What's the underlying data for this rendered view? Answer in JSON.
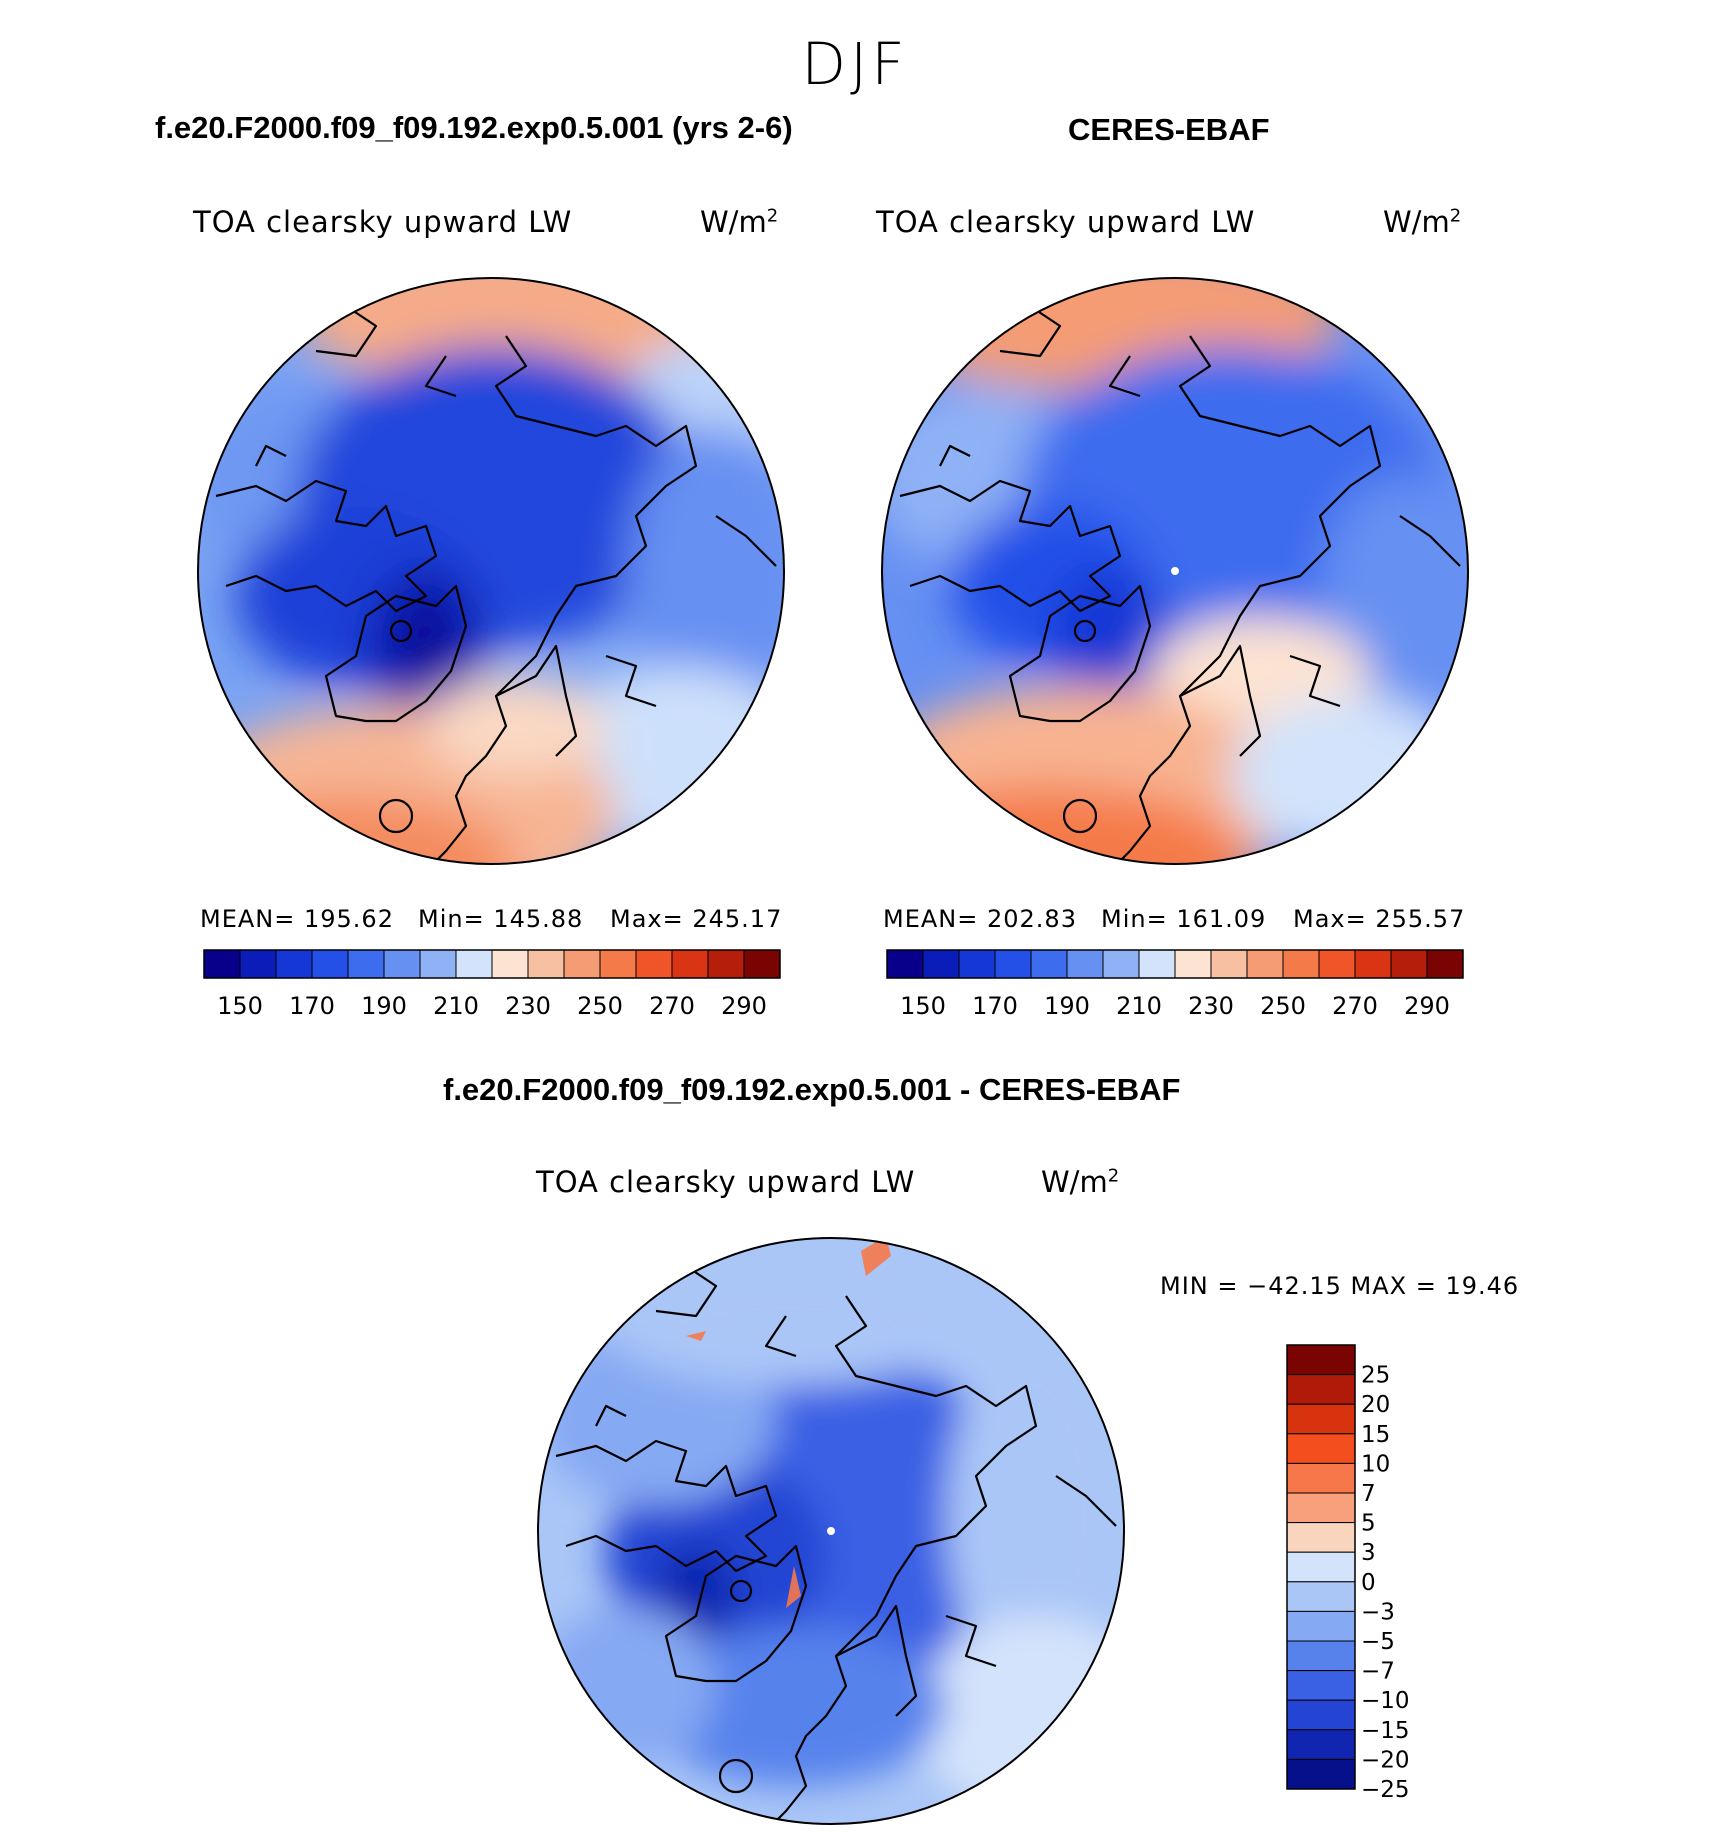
{
  "season": "DJF",
  "units": {
    "base": "W/m",
    "sup": "2"
  },
  "field_name": "TOA clearsky upward LW",
  "panels": [
    {
      "title": "f.e20.F2000.f09_f09.192.exp0.5.001 (yrs 2-6)",
      "stats": {
        "mean": "MEAN= 195.62",
        "min": "Min= 145.88",
        "max": "Max= 245.17"
      }
    },
    {
      "title": "CERES-EBAF",
      "stats": {
        "mean": "MEAN= 202.83",
        "min": "Min= 161.09",
        "max": "Max= 255.57"
      }
    }
  ],
  "diff": {
    "title": "f.e20.F2000.f09_f09.192.exp0.5.001 - CERES-EBAF",
    "minmax": "MIN = −42.15 MAX =   19.46"
  },
  "colorbar_top": {
    "colors": [
      "#08008a",
      "#0b1db8",
      "#1437d6",
      "#2450e8",
      "#3d6cef",
      "#6690f2",
      "#8fb1f5",
      "#d2e3fb",
      "#fde3d2",
      "#f8c0a2",
      "#f59c75",
      "#f57a4a",
      "#f0552a",
      "#d93414",
      "#b51e0a",
      "#7a0402"
    ],
    "labels": [
      "150",
      "170",
      "190",
      "210",
      "230",
      "250",
      "270",
      "290"
    ]
  },
  "colorbar_diff": {
    "colors": [
      "#7a0402",
      "#b01a08",
      "#d8330f",
      "#f24e1e",
      "#f6784a",
      "#f8a07b",
      "#fad5bd",
      "#d3e3fb",
      "#aac6f7",
      "#86a9f3",
      "#5782ec",
      "#3a60e4",
      "#2444d3",
      "#1026b0",
      "#06108a"
    ],
    "labels": [
      "25",
      "20",
      "15",
      "10",
      "7",
      "5",
      "3",
      "0",
      "−3",
      "−5",
      "−7",
      "−10",
      "−15",
      "−20",
      "−25"
    ]
  }
}
